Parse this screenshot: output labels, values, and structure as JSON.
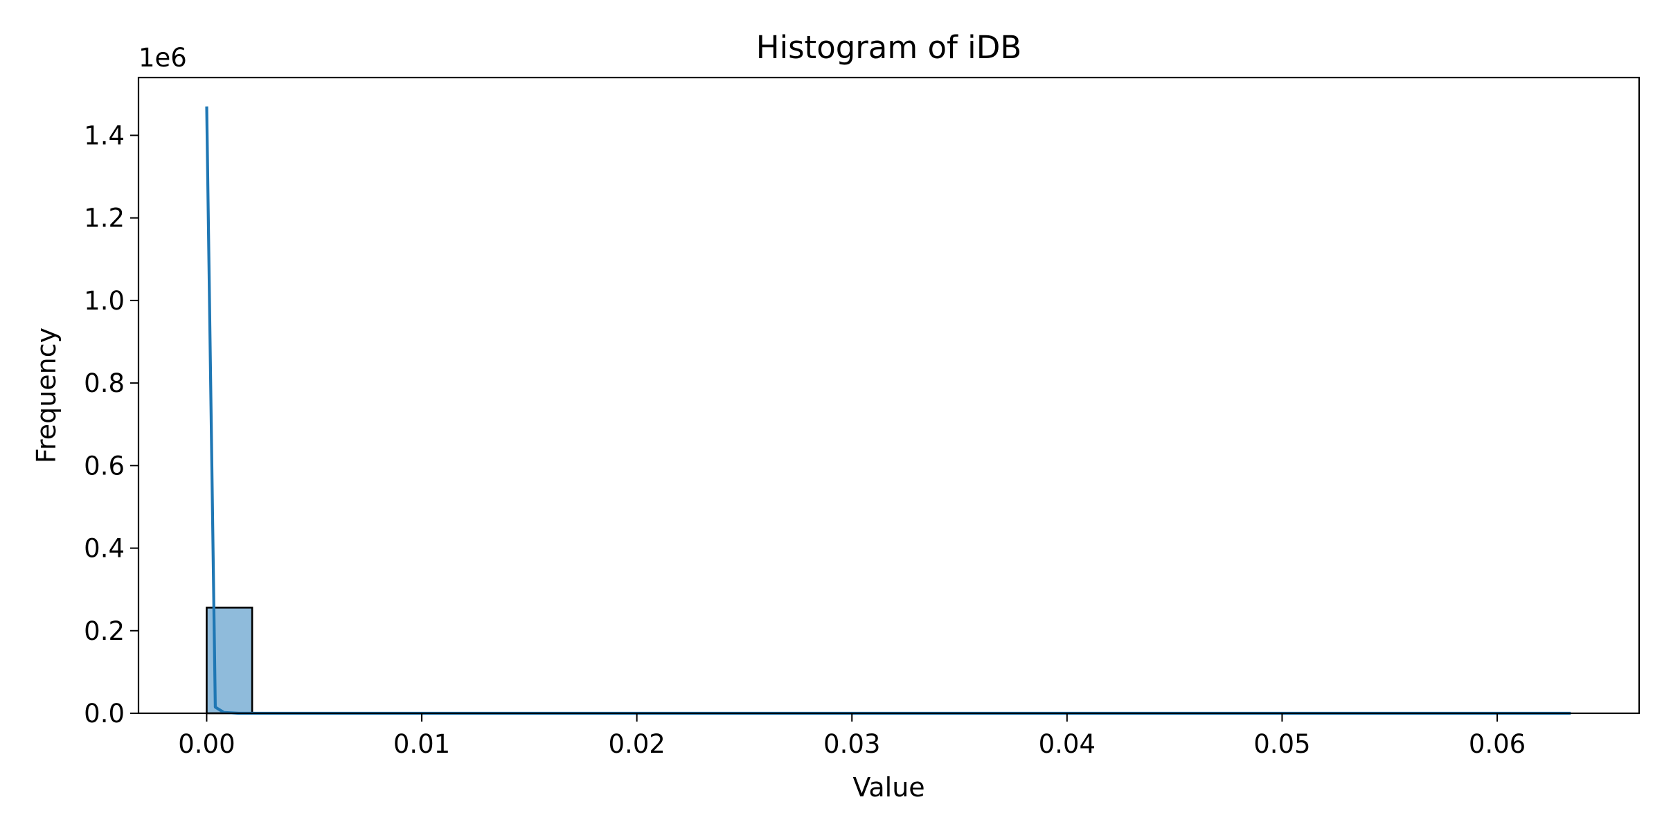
{
  "chart_data": {
    "type": "bar",
    "title": "Histogram of iDB",
    "xlabel": "Value",
    "ylabel": "Frequency",
    "y_offset_label": "1e6",
    "y_scale_factor": 1000000,
    "xlim": [
      -0.00317,
      0.0666
    ],
    "ylim": [
      0,
      1540000
    ],
    "x_ticks": [
      0.0,
      0.01,
      0.02,
      0.03,
      0.04,
      0.05,
      0.06
    ],
    "x_tick_labels": [
      "0.00",
      "0.01",
      "0.02",
      "0.03",
      "0.04",
      "0.05",
      "0.06"
    ],
    "y_ticks": [
      0,
      200000,
      400000,
      600000,
      800000,
      1000000,
      1200000,
      1400000
    ],
    "y_tick_labels": [
      "0.0",
      "0.2",
      "0.4",
      "0.6",
      "0.8",
      "1.0",
      "1.2",
      "1.4"
    ],
    "bin_edges": [
      0.0,
      0.002114,
      0.004228,
      0.006342,
      0.008456,
      0.01057,
      0.012684,
      0.014798,
      0.016912,
      0.019026,
      0.02114,
      0.023254,
      0.025368,
      0.027482,
      0.029596,
      0.03171,
      0.033824,
      0.035938,
      0.038052,
      0.040166,
      0.04228,
      0.044394,
      0.046508,
      0.048622,
      0.050736,
      0.05285,
      0.054964,
      0.057078,
      0.059192,
      0.061306,
      0.06342
    ],
    "values": [
      256000,
      0,
      0,
      0,
      0,
      0,
      0,
      0,
      0,
      0,
      0,
      0,
      0,
      0,
      0,
      0,
      0,
      0,
      0,
      0,
      0,
      0,
      0,
      0,
      0,
      0,
      0,
      0,
      0,
      0
    ],
    "series": [
      {
        "type": "line",
        "x": [
          0.0,
          0.0004,
          0.0008,
          0.0015,
          0.003,
          0.01,
          0.02,
          0.03,
          0.04,
          0.05,
          0.06,
          0.06342
        ],
        "values": [
          1470000,
          15000,
          2000,
          0,
          0,
          0,
          0,
          0,
          0,
          0,
          0,
          0
        ]
      }
    ],
    "grid": false,
    "colors": {
      "bar_fill": "#8fbbdb",
      "bar_edge": "#000000",
      "line": "#1f77b4"
    }
  }
}
